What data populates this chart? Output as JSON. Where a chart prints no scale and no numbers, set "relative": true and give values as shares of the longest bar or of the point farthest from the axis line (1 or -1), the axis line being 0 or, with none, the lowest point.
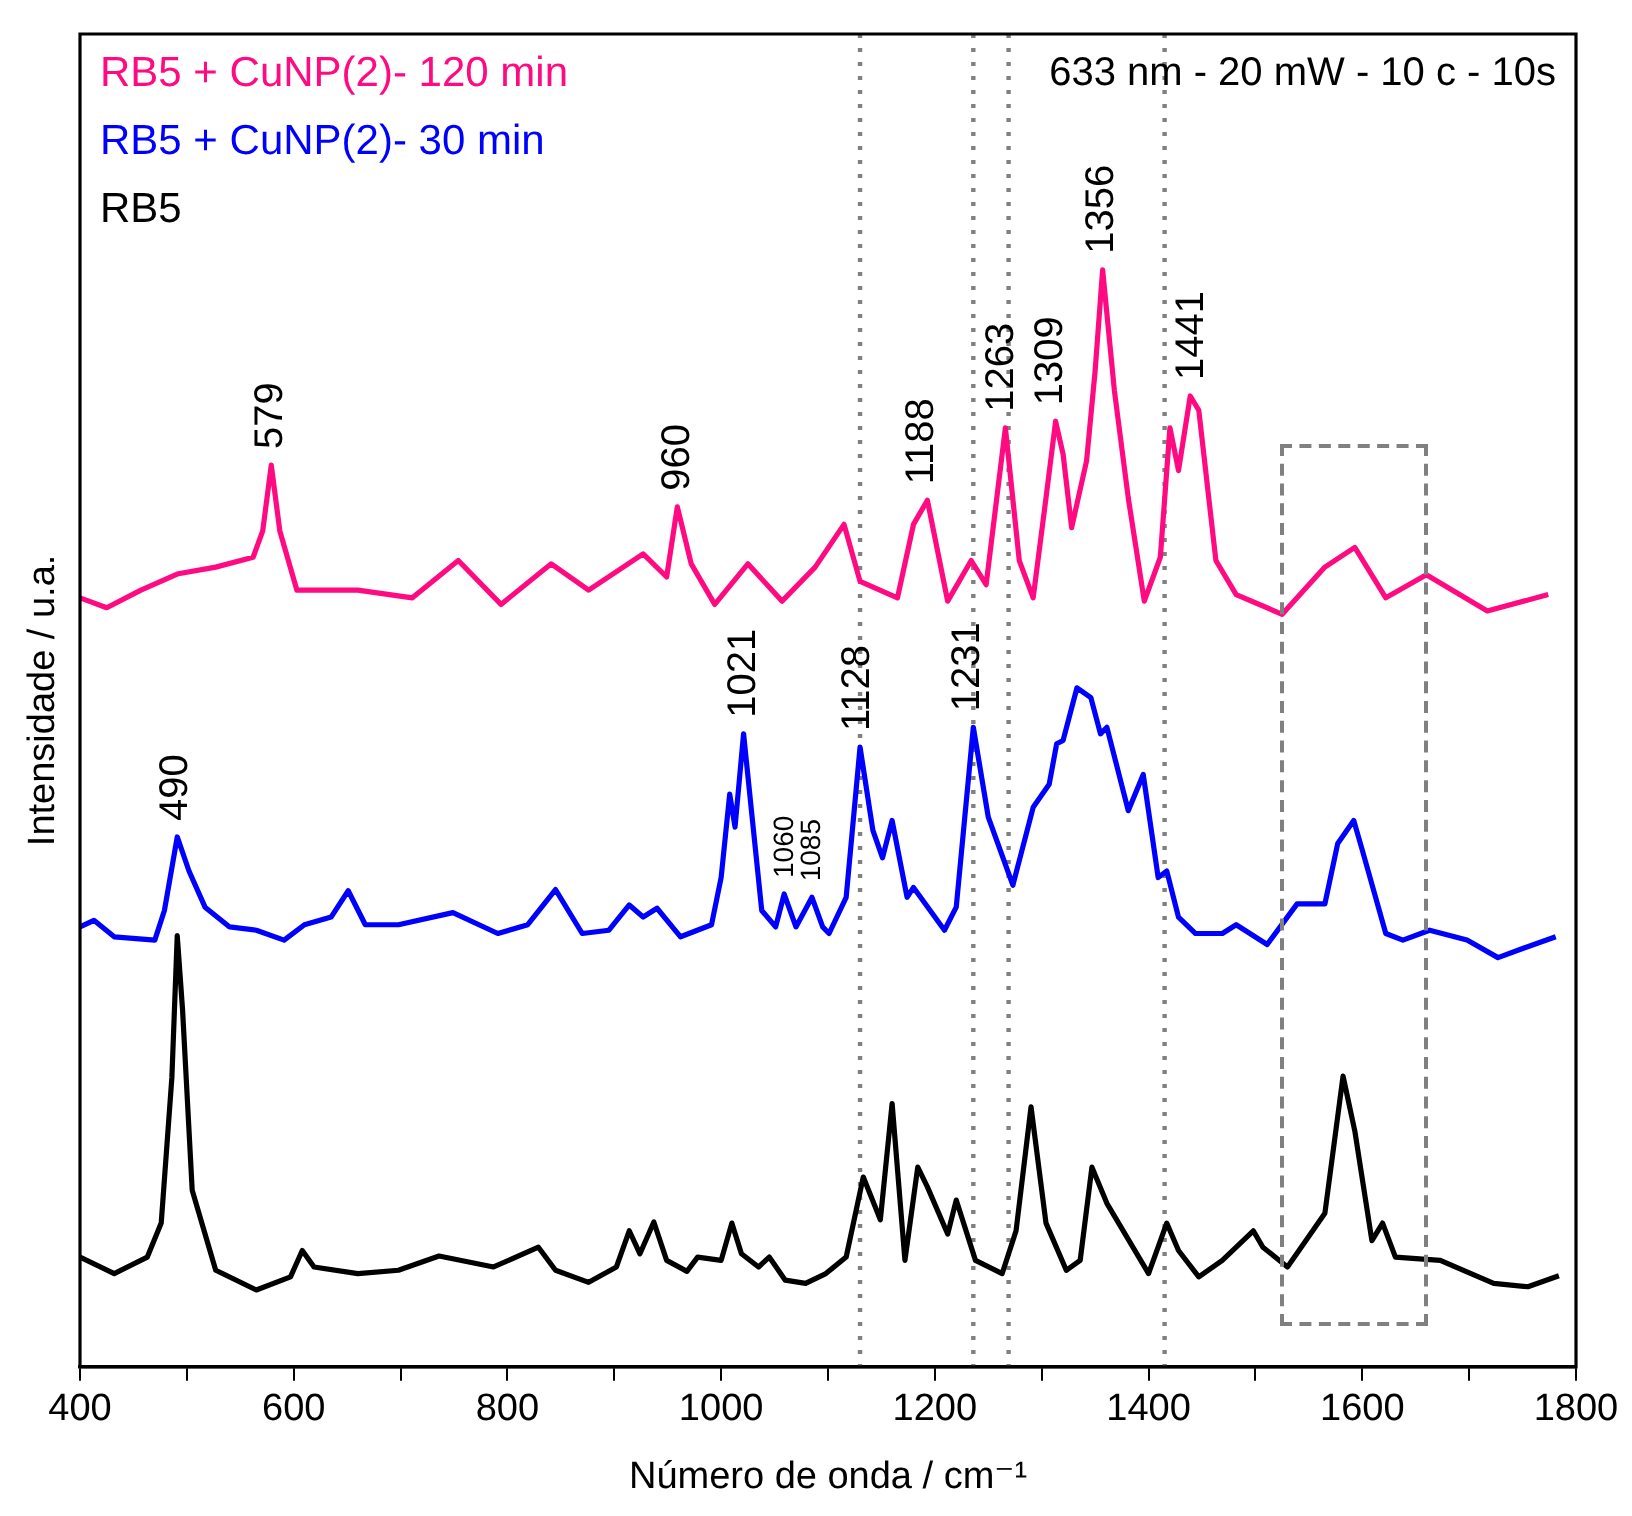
{
  "chart_data": {
    "type": "line",
    "relative": true,
    "xlabel": "Número de onda / cm⁻¹",
    "ylabel": "Intensidade / u.a.",
    "xlim": [
      400,
      1800
    ],
    "xticks": [
      400,
      {
        "value": 500,
        "label": null
      },
      600,
      {
        "value": 700,
        "label": null
      },
      800,
      {
        "value": 900,
        "label": null
      },
      1000,
      {
        "value": 1100,
        "label": null
      },
      1200,
      {
        "value": 1300,
        "label": null
      },
      1400,
      {
        "value": 1500,
        "label": null
      },
      1600,
      {
        "value": 1700,
        "label": null
      },
      1800
    ],
    "legend": "top left",
    "grid": false,
    "marker": "none",
    "line_style": "solid",
    "series": [
      {
        "name": "RB5 + CuNP(2)- 120 min",
        "color": "#ff0a80",
        "x": [
          400,
          425,
          457,
          492,
          527,
          562,
          571,
          579,
          587,
          603,
          660,
          711,
          754,
          794,
          841,
          876,
          927,
          949,
          959,
          972,
          994,
          1025,
          1057,
          1088,
          1115,
          1130,
          1165,
          1180,
          1193,
          1212,
          1234,
          1248,
          1266,
          1279,
          1292,
          1304,
          1313,
          1320,
          1328,
          1342,
          1350,
          1357,
          1368,
          1381,
          1396,
          1411,
          1420,
          1428,
          1439,
          1447,
          1463,
          1482,
          1525,
          1565,
          1593,
          1622,
          1660,
          1717,
          1774
        ],
        "values": [
          0.701,
          0.692,
          0.708,
          0.723,
          0.729,
          0.738,
          0.762,
          0.822,
          0.762,
          0.708,
          0.708,
          0.701,
          0.735,
          0.695,
          0.732,
          0.708,
          0.741,
          0.72,
          0.784,
          0.732,
          0.695,
          0.732,
          0.698,
          0.729,
          0.768,
          0.716,
          0.701,
          0.768,
          0.79,
          0.698,
          0.735,
          0.713,
          0.856,
          0.735,
          0.701,
          0.792,
          0.862,
          0.832,
          0.765,
          0.826,
          0.908,
          1.0,
          0.89,
          0.792,
          0.698,
          0.738,
          0.856,
          0.817,
          0.885,
          0.872,
          0.735,
          0.704,
          0.686,
          0.729,
          0.747,
          0.701,
          0.722,
          0.689,
          0.704
        ]
      },
      {
        "name": "RB5 + CuNP(2)- 30 min",
        "color": "#0000ff",
        "x": [
          400,
          413,
          432,
          470,
          479,
          491,
          502,
          517,
          540,
          565,
          591,
          610,
          635,
          651,
          667,
          698,
          749,
          791,
          819,
          845,
          870,
          895,
          914,
          927,
          940,
          962,
          991,
          1000,
          1008,
          1013,
          1021,
          1029,
          1038,
          1051,
          1059,
          1070,
          1085,
          1095,
          1101,
          1117,
          1130,
          1142,
          1151,
          1160,
          1174,
          1180,
          1209,
          1220,
          1236,
          1250,
          1273,
          1292,
          1307,
          1314,
          1320,
          1333,
          1346,
          1355,
          1361,
          1381,
          1395,
          1409,
          1417,
          1428,
          1444,
          1469,
          1482,
          1511,
          1539,
          1565,
          1577,
          1592,
          1600,
          1622,
          1638,
          1663,
          1698,
          1727,
          1752,
          1781
        ],
        "values": [
          0.401,
          0.407,
          0.392,
          0.389,
          0.416,
          0.483,
          0.452,
          0.419,
          0.401,
          0.398,
          0.389,
          0.403,
          0.41,
          0.434,
          0.403,
          0.403,
          0.414,
          0.395,
          0.403,
          0.435,
          0.395,
          0.398,
          0.421,
          0.41,
          0.418,
          0.392,
          0.403,
          0.446,
          0.522,
          0.492,
          0.577,
          0.501,
          0.416,
          0.401,
          0.431,
          0.401,
          0.428,
          0.401,
          0.395,
          0.428,
          0.565,
          0.489,
          0.464,
          0.498,
          0.428,
          0.437,
          0.398,
          0.419,
          0.583,
          0.501,
          0.439,
          0.51,
          0.531,
          0.568,
          0.571,
          0.619,
          0.61,
          0.577,
          0.583,
          0.507,
          0.54,
          0.446,
          0.452,
          0.41,
          0.395,
          0.395,
          0.403,
          0.385,
          0.422,
          0.422,
          0.477,
          0.498,
          0.471,
          0.395,
          0.389,
          0.398,
          0.389,
          0.373,
          0.382,
          0.392
        ]
      },
      {
        "name": "RB5",
        "color": "#000000",
        "x": [
          400,
          432,
          463,
          476,
          486,
          491,
          496,
          505,
          527,
          565,
          597,
          608,
          619,
          660,
          698,
          736,
          787,
          829,
          845,
          876,
          902,
          914,
          924,
          937,
          949,
          968,
          978,
          1000,
          1010,
          1019,
          1035,
          1045,
          1060,
          1079,
          1098,
          1117,
          1133,
          1149,
          1160,
          1172,
          1184,
          1193,
          1212,
          1220,
          1238,
          1263,
          1276,
          1290,
          1304,
          1323,
          1336,
          1347,
          1361,
          1400,
          1417,
          1428,
          1447,
          1469,
          1498,
          1507,
          1530,
          1565,
          1582,
          1593,
          1609,
          1619,
          1631,
          1673,
          1723,
          1755,
          1784
        ],
        "values": [
          0.1,
          0.085,
          0.1,
          0.131,
          0.264,
          0.393,
          0.325,
          0.161,
          0.088,
          0.07,
          0.082,
          0.106,
          0.091,
          0.085,
          0.088,
          0.101,
          0.091,
          0.109,
          0.088,
          0.077,
          0.091,
          0.124,
          0.103,
          0.132,
          0.097,
          0.087,
          0.1,
          0.097,
          0.131,
          0.103,
          0.091,
          0.1,
          0.079,
          0.076,
          0.085,
          0.1,
          0.173,
          0.134,
          0.24,
          0.097,
          0.182,
          0.164,
          0.121,
          0.152,
          0.097,
          0.085,
          0.124,
          0.237,
          0.131,
          0.088,
          0.097,
          0.182,
          0.149,
          0.085,
          0.131,
          0.106,
          0.082,
          0.097,
          0.124,
          0.109,
          0.091,
          0.14,
          0.265,
          0.215,
          0.115,
          0.131,
          0.1,
          0.097,
          0.076,
          0.073,
          0.083
        ]
      }
    ],
    "ref_lines": [
      {
        "axis": "x",
        "value": 1130,
        "color": "#808080",
        "line_style": "dotted"
      },
      {
        "axis": "x",
        "value": 1236,
        "color": "#808080",
        "line_style": "dotted"
      },
      {
        "axis": "x",
        "value": 1269,
        "color": "#808080",
        "line_style": "dotted"
      },
      {
        "axis": "x",
        "value": 1415,
        "color": "#808080",
        "line_style": "dotted"
      }
    ],
    "annotations": [
      "633 nm - 20 mW - 10 c - 10s",
      {
        "text": "579",
        "x": 579,
        "y": 0.822
      },
      {
        "text": "960",
        "x": 960,
        "y": 0.784
      },
      {
        "text": "1188",
        "x": 1188,
        "y": 0.79
      },
      {
        "text": "1263",
        "x": 1263,
        "y": 0.856
      },
      {
        "text": "1309",
        "x": 1309,
        "y": 0.862
      },
      {
        "text": "1356",
        "x": 1356,
        "y": 1.0
      },
      {
        "text": "1441",
        "x": 1441,
        "y": 0.885
      },
      {
        "text": "490",
        "x": 490,
        "y": 0.483
      },
      {
        "text": "1021",
        "x": 1021,
        "y": 0.577
      },
      {
        "text": "1060",
        "x": 1060,
        "y": 0.431
      },
      {
        "text": "1085",
        "x": 1085,
        "y": 0.428
      },
      {
        "text": "1128",
        "x": 1128,
        "y": 0.565
      },
      {
        "text": "1231",
        "x": 1231,
        "y": 0.583
      }
    ]
  }
}
